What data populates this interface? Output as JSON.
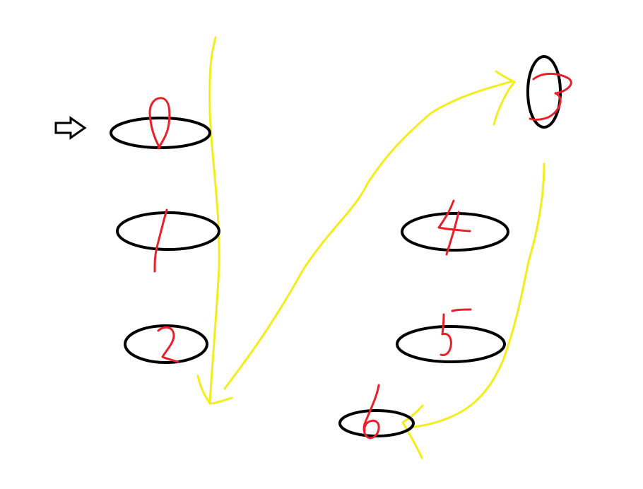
{
  "diagram": {
    "background_color": "#ffffff",
    "colors": {
      "path_color": "#f2ee1c",
      "node_outline_color": "#000000",
      "label_color": "#e8202a"
    },
    "start_marker": {
      "icon": "hollow-right-arrow-icon"
    },
    "nodes": [
      {
        "label": "0",
        "order": 0
      },
      {
        "label": "1",
        "order": 1
      },
      {
        "label": "2",
        "order": 2
      },
      {
        "label": "3",
        "order": 3
      },
      {
        "label": "4",
        "order": 4
      },
      {
        "label": "5",
        "order": 5
      },
      {
        "label": "6",
        "order": 6
      }
    ],
    "path_segments": [
      {
        "from": "0",
        "to": "2"
      },
      {
        "from": "2",
        "to": "3"
      },
      {
        "from": "3",
        "to": "6"
      }
    ]
  }
}
